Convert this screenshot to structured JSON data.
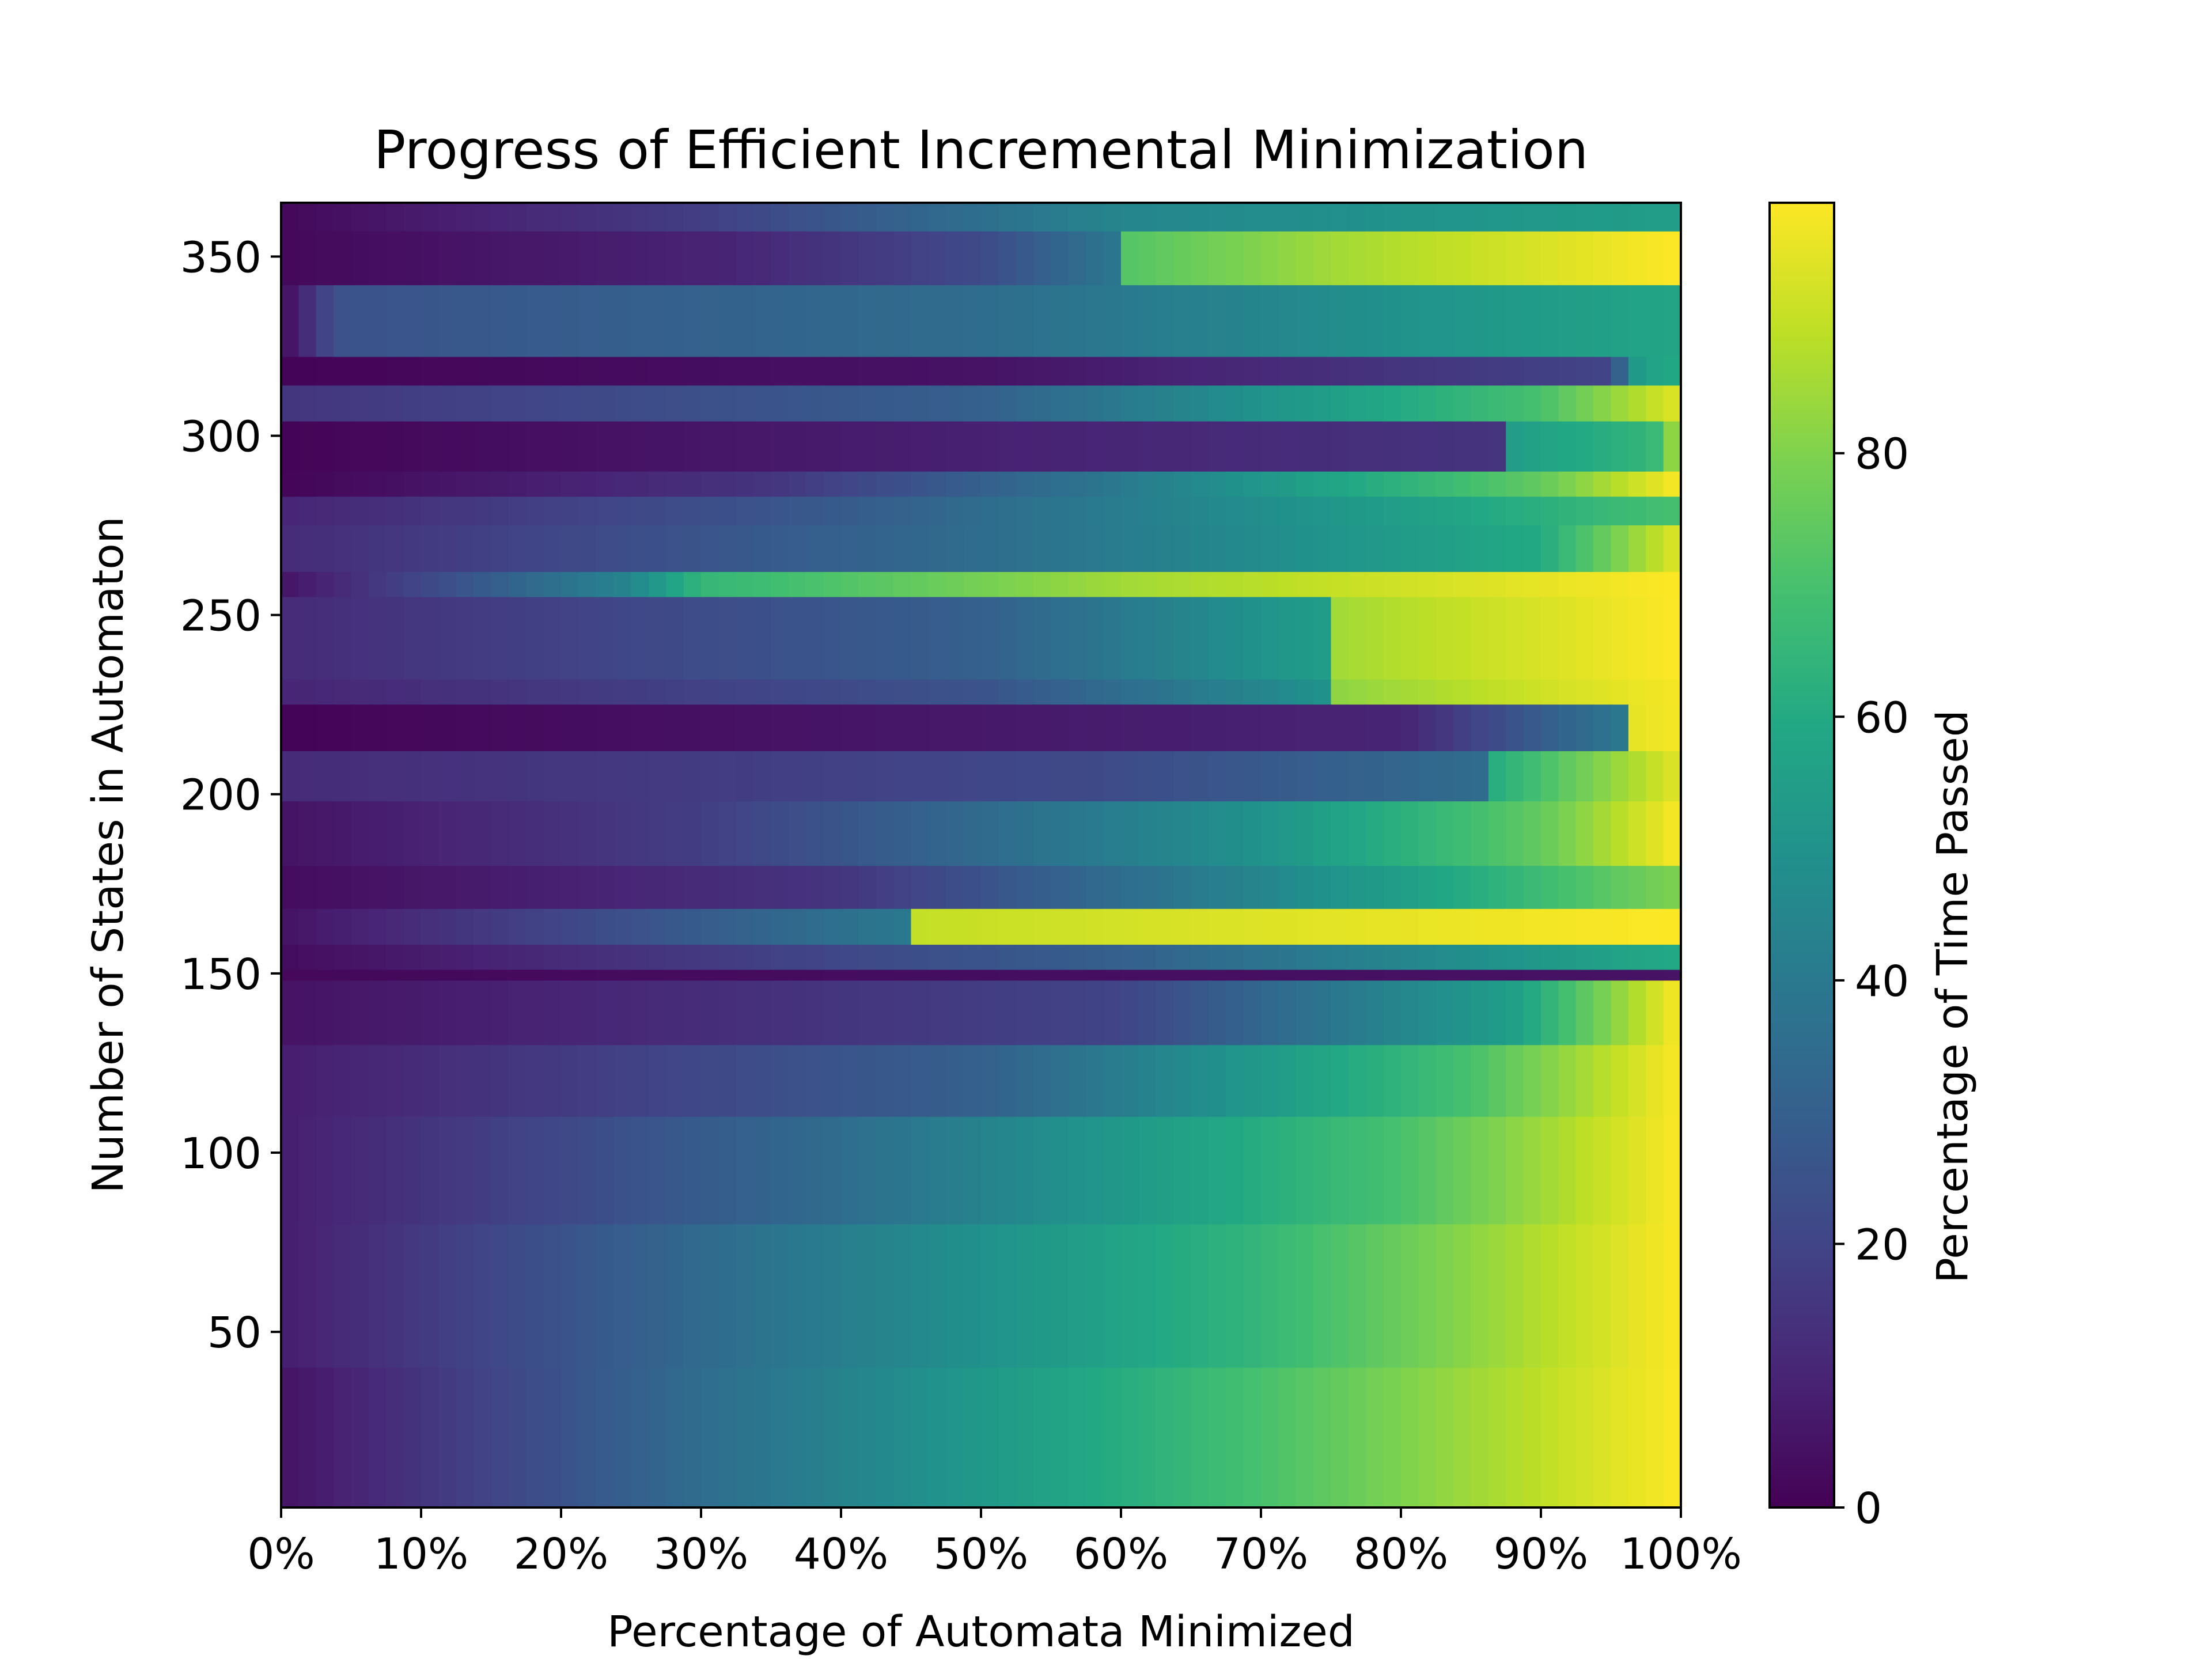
{
  "chart_data": {
    "type": "heatmap",
    "title": "Progress of Efficient Incremental Minimization",
    "xlabel": "Percentage of Automata Minimized",
    "ylabel": "Number of States in Automaton",
    "colorbar_label": "Percentage of Time Passed",
    "colormap": "viridis",
    "xlim": [
      0,
      100
    ],
    "ylim": [
      1,
      365
    ],
    "clim": [
      0,
      99
    ],
    "x_ticks": [
      0,
      10,
      20,
      30,
      40,
      50,
      60,
      70,
      80,
      90,
      100
    ],
    "x_tick_labels": [
      "0%",
      "10%",
      "20%",
      "30%",
      "40%",
      "50%",
      "60%",
      "70%",
      "80%",
      "90%",
      "100%"
    ],
    "y_ticks": [
      50,
      100,
      150,
      200,
      250,
      300,
      350
    ],
    "y_tick_labels": [
      "50",
      "100",
      "150",
      "200",
      "250",
      "300",
      "350"
    ],
    "colorbar_ticks": [
      0,
      20,
      40,
      60,
      80
    ],
    "colorbar_tick_labels": [
      "0",
      "20",
      "40",
      "60",
      "80"
    ],
    "grid": false,
    "rows_representative": [
      {
        "y": [
          357,
          365
        ],
        "profile": [
          [
            0,
            2
          ],
          [
            30,
            18
          ],
          [
            60,
            45
          ],
          [
            100,
            55
          ]
        ]
      },
      {
        "y": [
          342,
          357
        ],
        "profile": [
          [
            0,
            2
          ],
          [
            32,
            10
          ],
          [
            50,
            22
          ],
          [
            60,
            40
          ],
          [
            60.1,
            72
          ],
          [
            75,
            85
          ],
          [
            100,
            99
          ]
        ]
      },
      {
        "y": [
          322,
          342
        ],
        "profile": [
          [
            0,
            2
          ],
          [
            4,
            25
          ],
          [
            50,
            35
          ],
          [
            80,
            50
          ],
          [
            100,
            58
          ]
        ]
      },
      {
        "y": [
          314,
          322
        ],
        "profile": [
          [
            0,
            1
          ],
          [
            50,
            5
          ],
          [
            95,
            20
          ],
          [
            97,
            55
          ],
          [
            100,
            60
          ]
        ]
      },
      {
        "y": [
          304,
          314
        ],
        "profile": [
          [
            0,
            15
          ],
          [
            50,
            30
          ],
          [
            90,
            70
          ],
          [
            100,
            95
          ]
        ]
      },
      {
        "y": [
          290,
          304
        ],
        "profile": [
          [
            0,
            1
          ],
          [
            88,
            15
          ],
          [
            88.1,
            55
          ],
          [
            98,
            65
          ],
          [
            100,
            90
          ]
        ]
      },
      {
        "y": [
          283,
          290
        ],
        "profile": [
          [
            0,
            1
          ],
          [
            35,
            15
          ],
          [
            60,
            40
          ],
          [
            90,
            75
          ],
          [
            100,
            99
          ]
        ]
      },
      {
        "y": [
          275,
          283
        ],
        "profile": [
          [
            0,
            10
          ],
          [
            40,
            28
          ],
          [
            80,
            55
          ],
          [
            100,
            70
          ]
        ]
      },
      {
        "y": [
          262,
          275
        ],
        "profile": [
          [
            0,
            12
          ],
          [
            50,
            35
          ],
          [
            90,
            60
          ],
          [
            100,
            95
          ]
        ]
      },
      {
        "y": [
          255,
          262
        ],
        "profile": [
          [
            0,
            5
          ],
          [
            25,
            45
          ],
          [
            30,
            65
          ],
          [
            60,
            85
          ],
          [
            100,
            99
          ]
        ]
      },
      {
        "y": [
          232,
          255
        ],
        "profile": [
          [
            0,
            12
          ],
          [
            50,
            30
          ],
          [
            75,
            55
          ],
          [
            75.1,
            85
          ],
          [
            100,
            99
          ]
        ]
      },
      {
        "y": [
          225,
          232
        ],
        "profile": [
          [
            0,
            10
          ],
          [
            50,
            25
          ],
          [
            75,
            50
          ],
          [
            75.1,
            82
          ],
          [
            100,
            98
          ]
        ]
      },
      {
        "y": [
          212,
          225
        ],
        "profile": [
          [
            0,
            1
          ],
          [
            80,
            10
          ],
          [
            96,
            40
          ],
          [
            96.1,
            95
          ],
          [
            100,
            98
          ]
        ]
      },
      {
        "y": [
          198,
          212
        ],
        "profile": [
          [
            0,
            12
          ],
          [
            58,
            22
          ],
          [
            86,
            35
          ],
          [
            86.1,
            60
          ],
          [
            100,
            95
          ]
        ]
      },
      {
        "y": [
          180,
          198
        ],
        "profile": [
          [
            0,
            5
          ],
          [
            30,
            18
          ],
          [
            70,
            50
          ],
          [
            90,
            75
          ],
          [
            100,
            99
          ]
        ]
      },
      {
        "y": [
          168,
          180
        ],
        "profile": [
          [
            0,
            3
          ],
          [
            40,
            15
          ],
          [
            80,
            55
          ],
          [
            100,
            80
          ]
        ]
      },
      {
        "y": [
          158,
          168
        ],
        "profile": [
          [
            0,
            5
          ],
          [
            45,
            40
          ],
          [
            45.1,
            90
          ],
          [
            100,
            99
          ]
        ]
      },
      {
        "y": [
          151,
          158
        ],
        "profile": [
          [
            0,
            3
          ],
          [
            60,
            30
          ],
          [
            100,
            60
          ]
        ]
      },
      {
        "y": [
          148,
          151
        ],
        "profile": [
          [
            0,
            2
          ],
          [
            100,
            5
          ]
        ]
      },
      {
        "y": [
          130,
          148
        ],
        "profile": [
          [
            0,
            5
          ],
          [
            60,
            20
          ],
          [
            88,
            55
          ],
          [
            100,
            99
          ]
        ]
      },
      {
        "y": [
          110,
          130
        ],
        "profile": [
          [
            0,
            8
          ],
          [
            50,
            30
          ],
          [
            85,
            70
          ],
          [
            100,
            99
          ]
        ]
      },
      {
        "y": [
          80,
          110
        ],
        "profile": [
          [
            0,
            8
          ],
          [
            40,
            35
          ],
          [
            80,
            70
          ],
          [
            100,
            99
          ]
        ]
      },
      {
        "y": [
          40,
          80
        ],
        "profile": [
          [
            0,
            8
          ],
          [
            35,
            38
          ],
          [
            70,
            65
          ],
          [
            100,
            99
          ]
        ]
      },
      {
        "y": [
          1,
          40
        ],
        "profile": [
          [
            0,
            5
          ],
          [
            30,
            35
          ],
          [
            70,
            70
          ],
          [
            100,
            99
          ]
        ]
      }
    ]
  }
}
